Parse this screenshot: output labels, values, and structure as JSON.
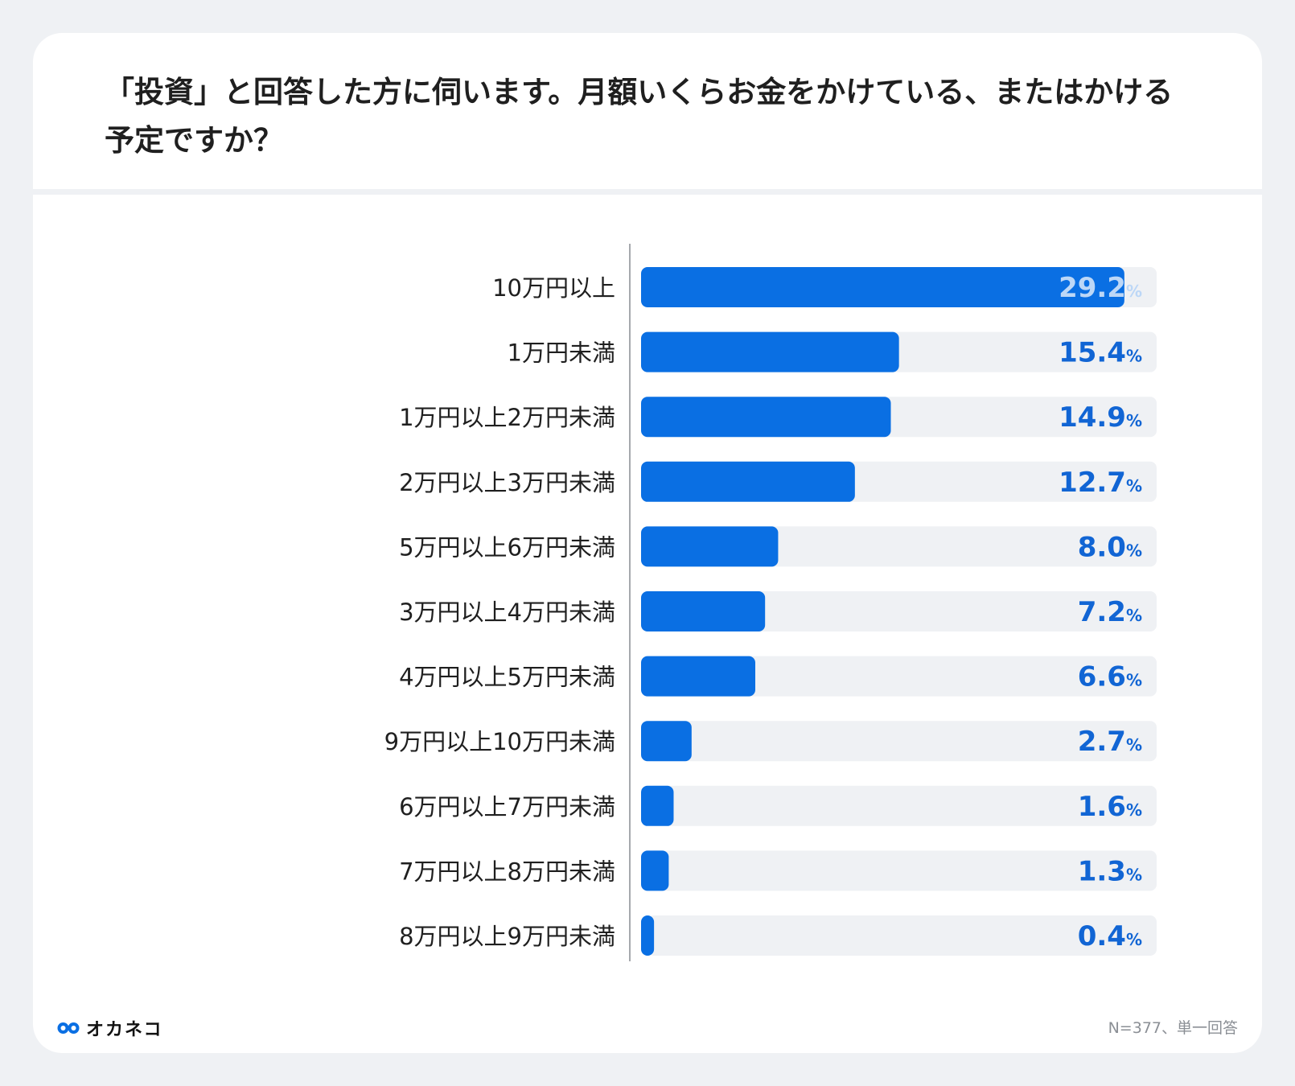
{
  "chart_data": {
    "type": "bar",
    "orientation": "horizontal",
    "title": "「投資」と回答した方に伺います。月額いくらお金をかけている、またはかける予定ですか？",
    "categories": [
      "10万円以上",
      "1万円未満",
      "1万円以上2万円未満",
      "2万円以上3万円未満",
      "5万円以上6万円未満",
      "3万円以上4万円未満",
      "4万円以上5万円未満",
      "9万円以上10万円未満",
      "6万円以上7万円未満",
      "7万円以上8万円未満",
      "8万円以上9万円未満"
    ],
    "values": [
      29.2,
      15.4,
      14.9,
      12.7,
      8.0,
      7.2,
      6.6,
      2.7,
      1.6,
      1.3,
      0.4
    ],
    "value_suffix": "%",
    "xlim": [
      0,
      33
    ],
    "bar_color": "#0a6fe3",
    "track_color": "#eff1f4",
    "label_color": "#1165d4",
    "highlight_label_color": "#bcd7f7"
  },
  "footer": {
    "brand": "オカネコ",
    "note": "N=377、単一回答"
  }
}
